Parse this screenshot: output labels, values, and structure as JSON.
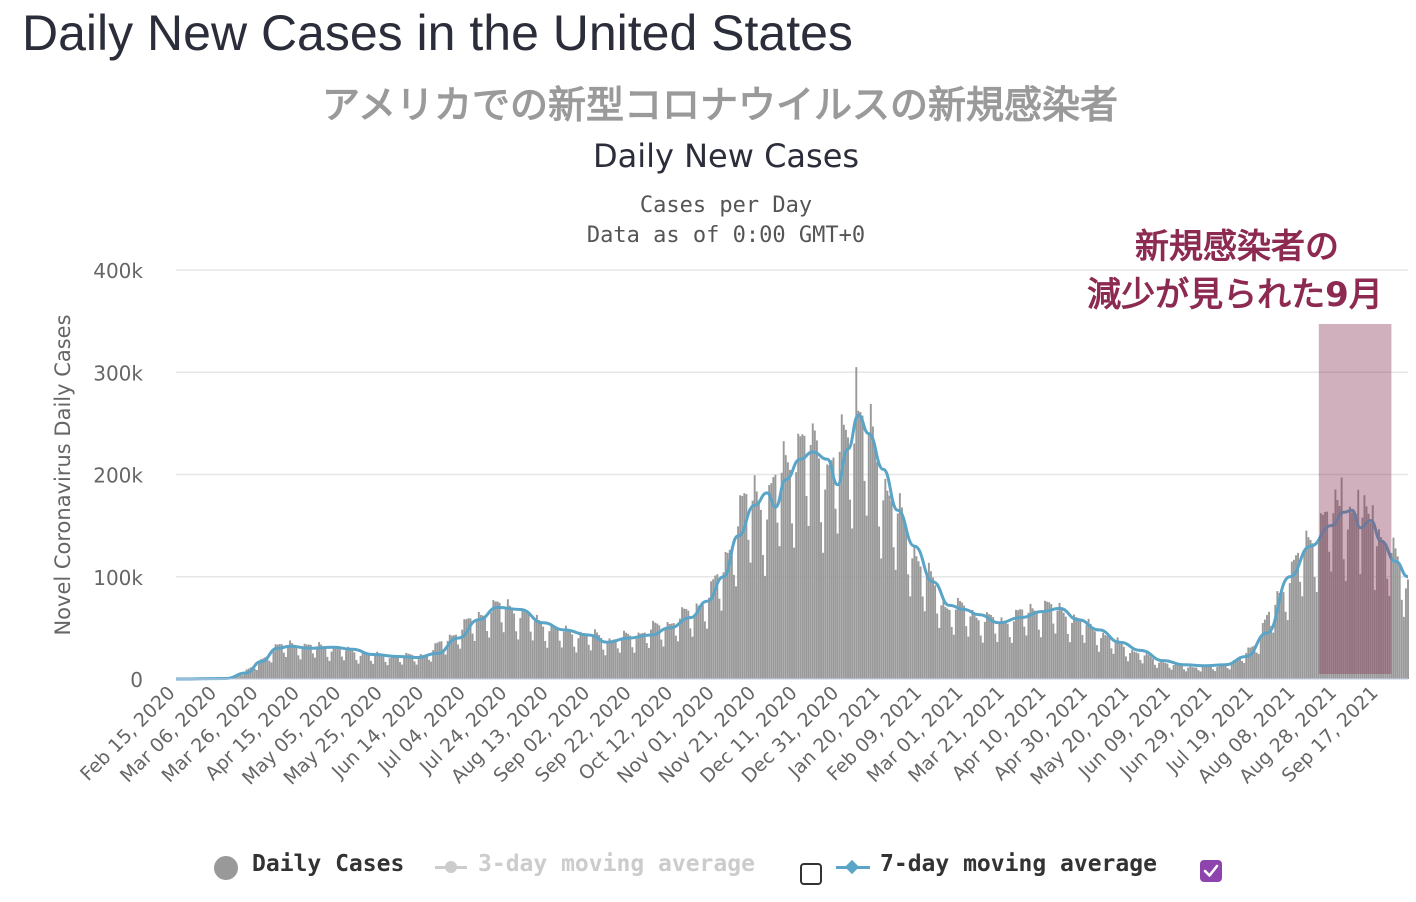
{
  "page": {
    "title": "Daily New Cases in the United States",
    "subtitle_jp": "アメリカでの新型コロナウイルスの新規感染者"
  },
  "annotation": {
    "line1": "新規感染者の",
    "line2": "減少が見られた9月",
    "color": "#8c2a52",
    "highlight_color": "#8c3a5a"
  },
  "legend": {
    "daily": "Daily Cases",
    "ma3": "3-day moving average",
    "ma7": "7-day moving average",
    "ma3_checked": false,
    "ma7_checked": true,
    "checkbox_checked_color": "#8e44ad"
  },
  "colors": {
    "bars": "#999999",
    "line7": "#5aa4c7",
    "grid": "#e6e6e6",
    "title": "#2b2e3a"
  },
  "chart_data": {
    "type": "bar",
    "title": "Daily New Cases",
    "subtitle_lines": [
      "Cases per Day",
      "Data as of 0:00 GMT+0"
    ],
    "ylabel": "Novel Coronavirus Daily Cases",
    "ylim": [
      0,
      400000
    ],
    "yticks": [
      0,
      100000,
      200000,
      300000,
      400000
    ],
    "ytick_labels": [
      "0",
      "100k",
      "200k",
      "300k",
      "400k"
    ],
    "xtick_labels": [
      "Feb 15, 2020",
      "Mar 06, 2020",
      "Mar 26, 2020",
      "Apr 15, 2020",
      "May 05, 2020",
      "May 25, 2020",
      "Jun 14, 2020",
      "Jul 04, 2020",
      "Jul 24, 2020",
      "Aug 13, 2020",
      "Sep 02, 2020",
      "Sep 22, 2020",
      "Oct 12, 2020",
      "Nov 01, 2020",
      "Nov 21, 2020",
      "Dec 11, 2020",
      "Dec 31, 2020",
      "Jan 20, 2021",
      "Feb 09, 2021",
      "Mar 01, 2021",
      "Mar 21, 2021",
      "Apr 10, 2021",
      "Apr 30, 2021",
      "May 20, 2021",
      "Jun 09, 2021",
      "Jun 29, 2021",
      "Jul 19, 2021",
      "Aug 08, 2021",
      "Aug 28, 2021",
      "Sep 17, 2021"
    ],
    "x_start": "2020-02-15",
    "x_end": "2021-10-01",
    "grid": true,
    "legend_position": "bottom",
    "highlight_range": [
      "2021-08-19",
      "2021-09-23"
    ],
    "series": [
      {
        "name": "Daily Cases",
        "kind": "bar",
        "anchors": [
          [
            "2020-02-15",
            0
          ],
          [
            "2020-03-05",
            200
          ],
          [
            "2020-03-15",
            3000
          ],
          [
            "2020-03-25",
            13000
          ],
          [
            "2020-04-03",
            30000
          ],
          [
            "2020-04-10",
            32000
          ],
          [
            "2020-04-25",
            30000
          ],
          [
            "2020-05-05",
            27000
          ],
          [
            "2020-05-20",
            22000
          ],
          [
            "2020-06-05",
            21000
          ],
          [
            "2020-06-15",
            23000
          ],
          [
            "2020-06-25",
            38000
          ],
          [
            "2020-07-05",
            52000
          ],
          [
            "2020-07-16",
            66000
          ],
          [
            "2020-07-24",
            68000
          ],
          [
            "2020-08-05",
            55000
          ],
          [
            "2020-08-20",
            44000
          ],
          [
            "2020-09-05",
            40000
          ],
          [
            "2020-09-12",
            36000
          ],
          [
            "2020-09-25",
            42000
          ],
          [
            "2020-10-10",
            52000
          ],
          [
            "2020-10-20",
            62000
          ],
          [
            "2020-10-30",
            80000
          ],
          [
            "2020-11-05",
            105000
          ],
          [
            "2020-11-12",
            150000
          ],
          [
            "2020-11-20",
            175000
          ],
          [
            "2020-11-26",
            160000
          ],
          [
            "2020-12-04",
            200000
          ],
          [
            "2020-12-12",
            215000
          ],
          [
            "2020-12-20",
            220000
          ],
          [
            "2020-12-25",
            190000
          ],
          [
            "2020-12-31",
            210000
          ],
          [
            "2021-01-08",
            250000
          ],
          [
            "2021-01-12",
            240000
          ],
          [
            "2021-01-20",
            190000
          ],
          [
            "2021-01-31",
            140000
          ],
          [
            "2021-02-10",
            100000
          ],
          [
            "2021-02-20",
            68000
          ],
          [
            "2021-03-01",
            65000
          ],
          [
            "2021-03-10",
            56000
          ],
          [
            "2021-03-20",
            53000
          ],
          [
            "2021-03-30",
            62000
          ],
          [
            "2021-04-10",
            68000
          ],
          [
            "2021-04-20",
            60000
          ],
          [
            "2021-05-01",
            48000
          ],
          [
            "2021-05-10",
            38000
          ],
          [
            "2021-05-20",
            27000
          ],
          [
            "2021-06-01",
            18000
          ],
          [
            "2021-06-10",
            13000
          ],
          [
            "2021-06-20",
            11000
          ],
          [
            "2021-07-01",
            12000
          ],
          [
            "2021-07-10",
            16000
          ],
          [
            "2021-07-20",
            35000
          ],
          [
            "2021-07-30",
            75000
          ],
          [
            "2021-08-10",
            115000
          ],
          [
            "2021-08-20",
            145000
          ],
          [
            "2021-08-30",
            160000
          ],
          [
            "2021-09-05",
            150000
          ],
          [
            "2021-09-13",
            148000
          ],
          [
            "2021-09-20",
            125000
          ],
          [
            "2021-09-27",
            105000
          ],
          [
            "2021-10-01",
            90000
          ]
        ],
        "spikes": [
          [
            "2021-01-08",
            305000
          ],
          [
            "2020-12-18",
            250000
          ],
          [
            "2021-08-30",
            197000
          ],
          [
            "2021-09-07",
            185000
          ],
          [
            "2021-09-14",
            170000
          ]
        ]
      },
      {
        "name": "7-day moving average",
        "kind": "line",
        "points": [
          [
            "2020-02-15",
            0
          ],
          [
            "2020-03-10",
            500
          ],
          [
            "2020-03-20",
            6000
          ],
          [
            "2020-03-27",
            17000
          ],
          [
            "2020-04-04",
            30000
          ],
          [
            "2020-04-10",
            32000
          ],
          [
            "2020-04-20",
            30000
          ],
          [
            "2020-05-01",
            31000
          ],
          [
            "2020-05-10",
            29000
          ],
          [
            "2020-05-20",
            24000
          ],
          [
            "2020-06-01",
            22000
          ],
          [
            "2020-06-10",
            21000
          ],
          [
            "2020-06-20",
            25000
          ],
          [
            "2020-06-30",
            40000
          ],
          [
            "2020-07-10",
            58000
          ],
          [
            "2020-07-19",
            70000
          ],
          [
            "2020-07-30",
            68000
          ],
          [
            "2020-08-10",
            55000
          ],
          [
            "2020-08-20",
            48000
          ],
          [
            "2020-09-01",
            43000
          ],
          [
            "2020-09-10",
            36000
          ],
          [
            "2020-09-20",
            40000
          ],
          [
            "2020-10-01",
            43000
          ],
          [
            "2020-10-10",
            50000
          ],
          [
            "2020-10-20",
            60000
          ],
          [
            "2020-10-28",
            76000
          ],
          [
            "2020-11-05",
            100000
          ],
          [
            "2020-11-12",
            140000
          ],
          [
            "2020-11-20",
            170000
          ],
          [
            "2020-11-26",
            182000
          ],
          [
            "2020-11-30",
            168000
          ],
          [
            "2020-12-05",
            195000
          ],
          [
            "2020-12-12",
            215000
          ],
          [
            "2020-12-18",
            222000
          ],
          [
            "2020-12-25",
            215000
          ],
          [
            "2020-12-30",
            190000
          ],
          [
            "2021-01-04",
            225000
          ],
          [
            "2021-01-09",
            258000
          ],
          [
            "2021-01-14",
            240000
          ],
          [
            "2021-01-21",
            205000
          ],
          [
            "2021-01-28",
            165000
          ],
          [
            "2021-02-05",
            130000
          ],
          [
            "2021-02-14",
            95000
          ],
          [
            "2021-02-22",
            72000
          ],
          [
            "2021-03-01",
            68000
          ],
          [
            "2021-03-08",
            63000
          ],
          [
            "2021-03-18",
            55000
          ],
          [
            "2021-03-28",
            60000
          ],
          [
            "2021-04-08",
            66000
          ],
          [
            "2021-04-16",
            69000
          ],
          [
            "2021-04-25",
            58000
          ],
          [
            "2021-05-05",
            48000
          ],
          [
            "2021-05-15",
            36000
          ],
          [
            "2021-05-25",
            28000
          ],
          [
            "2021-06-05",
            18000
          ],
          [
            "2021-06-15",
            14000
          ],
          [
            "2021-06-25",
            13000
          ],
          [
            "2021-07-05",
            14000
          ],
          [
            "2021-07-15",
            22000
          ],
          [
            "2021-07-25",
            45000
          ],
          [
            "2021-08-05",
            100000
          ],
          [
            "2021-08-15",
            130000
          ],
          [
            "2021-08-25",
            150000
          ],
          [
            "2021-08-31",
            163000
          ],
          [
            "2021-09-04",
            165000
          ],
          [
            "2021-09-08",
            148000
          ],
          [
            "2021-09-13",
            155000
          ],
          [
            "2021-09-18",
            135000
          ],
          [
            "2021-09-25",
            115000
          ],
          [
            "2021-10-01",
            100000
          ]
        ]
      }
    ]
  }
}
